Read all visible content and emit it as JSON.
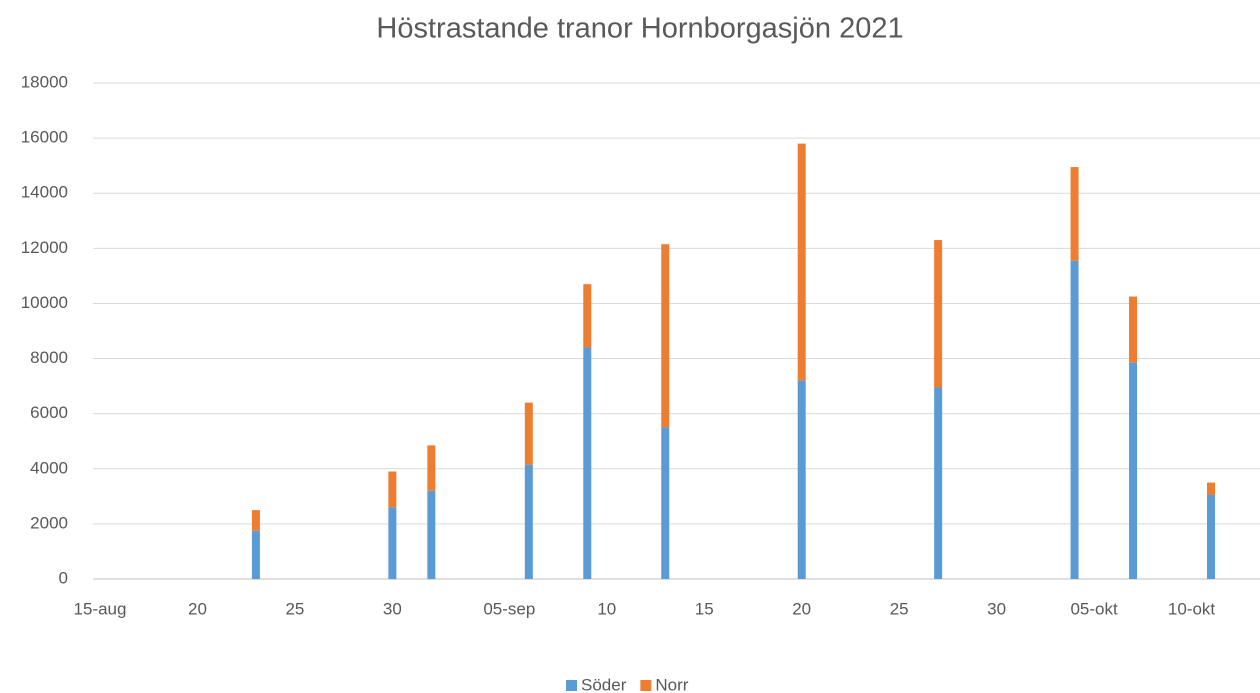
{
  "chart_data": {
    "type": "stacked_bar",
    "title": "Höstrastande tranor Hornborgasjön 2021",
    "x": [
      "08-23",
      "08-30",
      "09-01",
      "09-06",
      "09-09",
      "09-13",
      "09-20",
      "09-27",
      "10-04",
      "10-07",
      "10-11"
    ],
    "series": [
      {
        "name": "Söder",
        "color": "#5b9bd5",
        "values": [
          1750,
          2600,
          3200,
          4150,
          8400,
          5500,
          7200,
          6950,
          11550,
          7850,
          3050
        ]
      },
      {
        "name": "Norr",
        "color": "#ed7d31",
        "values": [
          750,
          1300,
          1650,
          2250,
          2300,
          6650,
          8600,
          5350,
          3400,
          2400,
          450
        ]
      }
    ],
    "xlim": [
      "08-15",
      "10-13"
    ],
    "xticks": [
      {
        "value": "08-15",
        "label": "15-aug"
      },
      {
        "value": "08-20",
        "label": "20"
      },
      {
        "value": "08-25",
        "label": "25"
      },
      {
        "value": "08-30",
        "label": "30"
      },
      {
        "value": "09-05",
        "label": "05-sep"
      },
      {
        "value": "09-10",
        "label": "10"
      },
      {
        "value": "09-15",
        "label": "15"
      },
      {
        "value": "09-20",
        "label": "20"
      },
      {
        "value": "09-25",
        "label": "25"
      },
      {
        "value": "09-30",
        "label": "30"
      },
      {
        "value": "10-05",
        "label": "05-okt"
      },
      {
        "value": "10-10",
        "label": "10-okt"
      }
    ],
    "ylim": [
      0,
      18000
    ],
    "yticks": [
      0,
      2000,
      4000,
      6000,
      8000,
      10000,
      12000,
      14000,
      16000,
      18000
    ],
    "grid": true,
    "legend": "bottom"
  }
}
